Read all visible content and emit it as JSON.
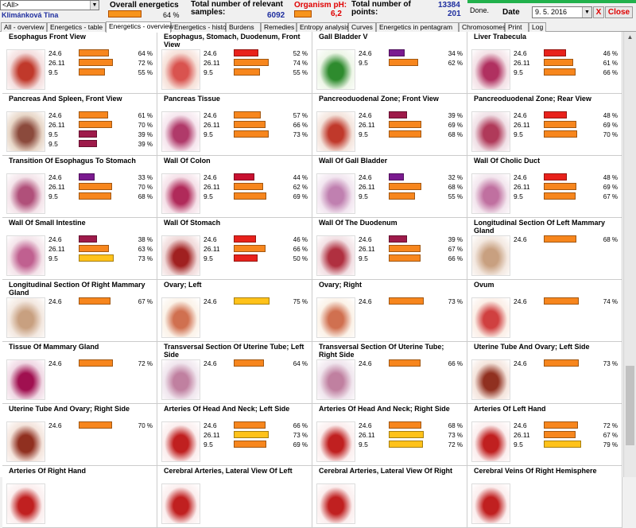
{
  "header": {
    "filter_value": "<All>",
    "patient": "Klimánková Tina",
    "overall_label": "Overall energetics",
    "overall_pct": "64 %",
    "relevant_label": "Total number of relevant samples:",
    "relevant_value": "6092",
    "ph_label": "Organism pH:",
    "ph_value": "6,2",
    "points_label": "Total number of points:",
    "points_value1": "13384",
    "points_value2": "201",
    "status": "Done.",
    "date_label": "Date",
    "date_value": "9. 5. 2016",
    "close_x": "X",
    "close_label": "Close",
    "bar_color": "#f7941d"
  },
  "tabs": [
    "All - overview",
    "Energetics - table",
    "Energetics - overview",
    "Energetics - history",
    "Burdens",
    "Remedies",
    "Entropy analysis",
    "Curves",
    "Energetics in pentagram",
    "Chromosomes",
    "Print",
    "Log"
  ],
  "active_tab": "Energetics - overview",
  "colors": {
    "red": "#e8211b",
    "orange": "#f7861d",
    "yellow": "#ffc21a",
    "purple": "#7a1a8f",
    "magenta": "#9e1a4a",
    "crimson": "#c81030"
  },
  "cells": [
    {
      "title": "Esophagus Front View",
      "rows": [
        {
          "l": "24.6",
          "p": "64 %",
          "v": 64,
          "c": "orange"
        },
        {
          "l": "26.11",
          "p": "72 %",
          "v": 72,
          "c": "orange"
        },
        {
          "l": "9.5",
          "p": "55 %",
          "v": 55,
          "c": "orange"
        }
      ]
    },
    {
      "title": "Esophagus, Stomach, Duodenum, Front View",
      "rows": [
        {
          "l": "24.6",
          "p": "52 %",
          "v": 52,
          "c": "red"
        },
        {
          "l": "26.11",
          "p": "74 %",
          "v": 74,
          "c": "orange"
        },
        {
          "l": "9.5",
          "p": "55 %",
          "v": 55,
          "c": "orange"
        }
      ]
    },
    {
      "title": "Gall Bladder V",
      "rows": [
        {
          "l": "24.6",
          "p": "34 %",
          "v": 34,
          "c": "purple"
        },
        {
          "l": "9.5",
          "p": "62 %",
          "v": 62,
          "c": "orange"
        }
      ]
    },
    {
      "title": "Liver Trabecula",
      "rows": [
        {
          "l": "24.6",
          "p": "46 %",
          "v": 46,
          "c": "red"
        },
        {
          "l": "26.11",
          "p": "61 %",
          "v": 61,
          "c": "orange"
        },
        {
          "l": "9.5",
          "p": "66 %",
          "v": 66,
          "c": "orange"
        }
      ]
    },
    {
      "title": "Pancreas And Spleen, Front View",
      "rows": [
        {
          "l": "24.6",
          "p": "61 %",
          "v": 61,
          "c": "orange"
        },
        {
          "l": "26.11",
          "p": "70 %",
          "v": 70,
          "c": "orange"
        },
        {
          "l": "9.5",
          "p": "39 %",
          "v": 39,
          "c": "magenta"
        },
        {
          "l": "9.5",
          "p": "39 %",
          "v": 39,
          "c": "magenta"
        }
      ]
    },
    {
      "title": "Pancreas Tissue",
      "rows": [
        {
          "l": "24.6",
          "p": "57 %",
          "v": 57,
          "c": "orange"
        },
        {
          "l": "26.11",
          "p": "66 %",
          "v": 66,
          "c": "orange"
        },
        {
          "l": "9.5",
          "p": "73 %",
          "v": 73,
          "c": "orange"
        }
      ]
    },
    {
      "title": "Pancreoduodenal Zone; Front View",
      "rows": [
        {
          "l": "24.6",
          "p": "39 %",
          "v": 39,
          "c": "magenta"
        },
        {
          "l": "26.11",
          "p": "69 %",
          "v": 69,
          "c": "orange"
        },
        {
          "l": "9.5",
          "p": "68 %",
          "v": 68,
          "c": "orange"
        }
      ]
    },
    {
      "title": "Pancreoduodenal Zone; Rear View",
      "rows": [
        {
          "l": "24.6",
          "p": "48 %",
          "v": 48,
          "c": "red"
        },
        {
          "l": "26.11",
          "p": "69 %",
          "v": 69,
          "c": "orange"
        },
        {
          "l": "9.5",
          "p": "70 %",
          "v": 70,
          "c": "orange"
        }
      ]
    },
    {
      "title": "Transition Of Esophagus To Stomach",
      "rows": [
        {
          "l": "24.6",
          "p": "33 %",
          "v": 33,
          "c": "purple"
        },
        {
          "l": "26.11",
          "p": "70 %",
          "v": 70,
          "c": "orange"
        },
        {
          "l": "9.5",
          "p": "68 %",
          "v": 68,
          "c": "orange"
        }
      ]
    },
    {
      "title": "Wall Of Colon",
      "rows": [
        {
          "l": "24.6",
          "p": "44 %",
          "v": 44,
          "c": "crimson"
        },
        {
          "l": "26.11",
          "p": "62 %",
          "v": 62,
          "c": "orange"
        },
        {
          "l": "9.5",
          "p": "69 %",
          "v": 69,
          "c": "orange"
        }
      ]
    },
    {
      "title": "Wall Of Gall Bladder",
      "rows": [
        {
          "l": "24.6",
          "p": "32 %",
          "v": 32,
          "c": "purple"
        },
        {
          "l": "26.11",
          "p": "68 %",
          "v": 68,
          "c": "orange"
        },
        {
          "l": "9.5",
          "p": "55 %",
          "v": 55,
          "c": "orange"
        }
      ]
    },
    {
      "title": "Wall Of Cholic Duct",
      "rows": [
        {
          "l": "24.6",
          "p": "48 %",
          "v": 48,
          "c": "red"
        },
        {
          "l": "26.11",
          "p": "69 %",
          "v": 69,
          "c": "orange"
        },
        {
          "l": "9.5",
          "p": "67 %",
          "v": 67,
          "c": "orange"
        }
      ]
    },
    {
      "title": "Wall Of Small Intestine",
      "rows": [
        {
          "l": "24.6",
          "p": "38 %",
          "v": 38,
          "c": "magenta"
        },
        {
          "l": "26.11",
          "p": "63 %",
          "v": 63,
          "c": "orange"
        },
        {
          "l": "9.5",
          "p": "73 %",
          "v": 73,
          "c": "yellow"
        }
      ]
    },
    {
      "title": "Wall Of Stomach",
      "rows": [
        {
          "l": "24.6",
          "p": "46 %",
          "v": 46,
          "c": "red"
        },
        {
          "l": "26.11",
          "p": "66 %",
          "v": 66,
          "c": "orange"
        },
        {
          "l": "9.5",
          "p": "50 %",
          "v": 50,
          "c": "red"
        }
      ]
    },
    {
      "title": "Wall Of The Duodenum",
      "rows": [
        {
          "l": "24.6",
          "p": "39 %",
          "v": 39,
          "c": "magenta"
        },
        {
          "l": "26.11",
          "p": "67 %",
          "v": 67,
          "c": "orange"
        },
        {
          "l": "9.5",
          "p": "66 %",
          "v": 66,
          "c": "orange"
        }
      ]
    },
    {
      "title": "Longitudinal Section Of Left Mammary Gland",
      "rows": [
        {
          "l": "24.6",
          "p": "68 %",
          "v": 68,
          "c": "orange"
        }
      ]
    },
    {
      "title": "Longitudinal Section Of Right Mammary Gland",
      "rows": [
        {
          "l": "24.6",
          "p": "67 %",
          "v": 67,
          "c": "orange"
        }
      ]
    },
    {
      "title": "Ovary; Left",
      "rows": [
        {
          "l": "24.6",
          "p": "75 %",
          "v": 75,
          "c": "yellow"
        }
      ]
    },
    {
      "title": "Ovary; Right",
      "rows": [
        {
          "l": "24.6",
          "p": "73 %",
          "v": 73,
          "c": "orange"
        }
      ]
    },
    {
      "title": "Ovum",
      "rows": [
        {
          "l": "24.6",
          "p": "74 %",
          "v": 74,
          "c": "orange"
        }
      ]
    },
    {
      "title": "Tissue Of Mammary Gland",
      "rows": [
        {
          "l": "24.6",
          "p": "72 %",
          "v": 72,
          "c": "orange"
        }
      ]
    },
    {
      "title": "Transversal Section Of Uterine Tube; Left Side",
      "rows": [
        {
          "l": "24.6",
          "p": "64 %",
          "v": 64,
          "c": "orange"
        }
      ]
    },
    {
      "title": "Transversal Section Of Uterine Tube; Right Side",
      "rows": [
        {
          "l": "24.6",
          "p": "66 %",
          "v": 66,
          "c": "orange"
        }
      ]
    },
    {
      "title": "Uterine Tube And Ovary; Left Side",
      "rows": [
        {
          "l": "24.6",
          "p": "73 %",
          "v": 73,
          "c": "orange"
        }
      ]
    },
    {
      "title": "Uterine Tube And Ovary; Right Side",
      "rows": [
        {
          "l": "24.6",
          "p": "70 %",
          "v": 70,
          "c": "orange"
        }
      ]
    },
    {
      "title": "Arteries Of Head And Neck; Left Side",
      "rows": [
        {
          "l": "24.6",
          "p": "66 %",
          "v": 66,
          "c": "orange"
        },
        {
          "l": "26.11",
          "p": "73 %",
          "v": 73,
          "c": "yellow"
        },
        {
          "l": "9.5",
          "p": "69 %",
          "v": 69,
          "c": "orange"
        }
      ]
    },
    {
      "title": "Arteries Of Head And Neck; Right Side",
      "rows": [
        {
          "l": "24.6",
          "p": "68 %",
          "v": 68,
          "c": "orange"
        },
        {
          "l": "26.11",
          "p": "73 %",
          "v": 73,
          "c": "yellow"
        },
        {
          "l": "9.5",
          "p": "72 %",
          "v": 72,
          "c": "yellow"
        }
      ]
    },
    {
      "title": "Arteries Of Left Hand",
      "rows": [
        {
          "l": "24.6",
          "p": "72 %",
          "v": 72,
          "c": "orange"
        },
        {
          "l": "26.11",
          "p": "67 %",
          "v": 67,
          "c": "orange"
        },
        {
          "l": "9.5",
          "p": "79 %",
          "v": 79,
          "c": "yellow"
        }
      ]
    },
    {
      "title": "Arteries Of Right Hand",
      "rows": []
    },
    {
      "title": "Cerebral Arteries, Lateral View Of Left",
      "rows": []
    },
    {
      "title": "Cerebral Arteries, Lateral View Of Right",
      "rows": []
    },
    {
      "title": "Cerebral Veins Of Right Hemisphere",
      "rows": []
    }
  ]
}
